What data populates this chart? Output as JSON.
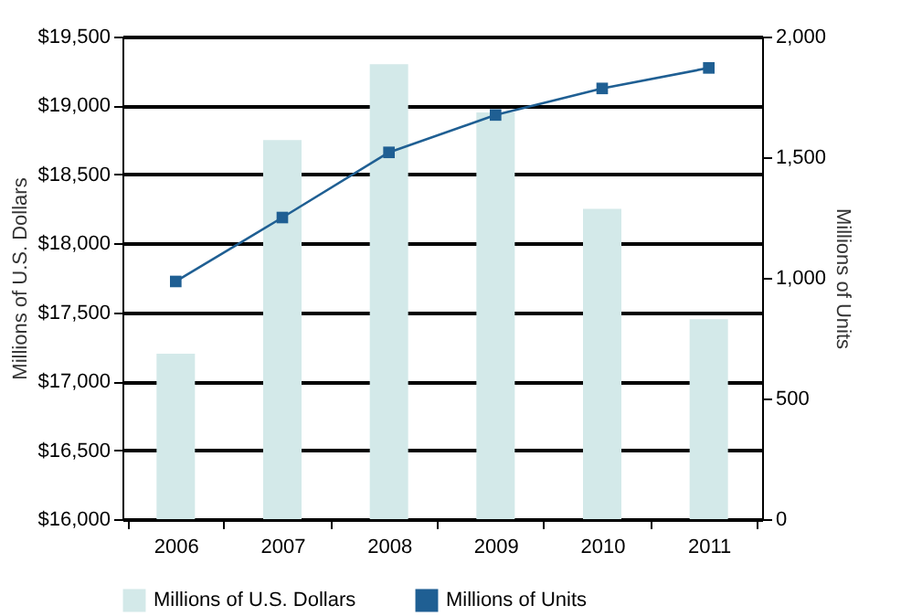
{
  "chart_data": {
    "type": "bar",
    "categories": [
      "2006",
      "2007",
      "2008",
      "2009",
      "2010",
      "2011"
    ],
    "series": [
      {
        "name": "Millions of U.S. Dollars",
        "color": "#d3e9e9",
        "values": [
          17200,
          18750,
          19300,
          18950,
          18250,
          17450
        ]
      },
      {
        "name": "Millions of Units",
        "type": "line",
        "axis": "y2",
        "color": "#1f5f93",
        "values": [
          985,
          1250,
          1520,
          1675,
          1785,
          1870
        ]
      }
    ],
    "ylabel": "Millions of U.S. Dollars",
    "y2label": "Millions of Units",
    "ylim": [
      16000,
      19500
    ],
    "yticks": [
      {
        "value": 16000,
        "label": "$16,000"
      },
      {
        "value": 16500,
        "label": "$16,500"
      },
      {
        "value": 17000,
        "label": "$17,000"
      },
      {
        "value": 17500,
        "label": "$17,500"
      },
      {
        "value": 18000,
        "label": "$18,000"
      },
      {
        "value": 18500,
        "label": "$18,500"
      },
      {
        "value": 19000,
        "label": "$19,000"
      },
      {
        "value": 19500,
        "label": "$19,500"
      }
    ],
    "y2lim": [
      0,
      2000
    ],
    "y2ticks": [
      0,
      500,
      {
        "value": 1000,
        "label": "1,000"
      },
      {
        "value": 1500,
        "label": "1,500"
      },
      {
        "value": 2000,
        "label": "2,000"
      }
    ],
    "grid": "y",
    "legend": "bottom",
    "marker": "square"
  }
}
